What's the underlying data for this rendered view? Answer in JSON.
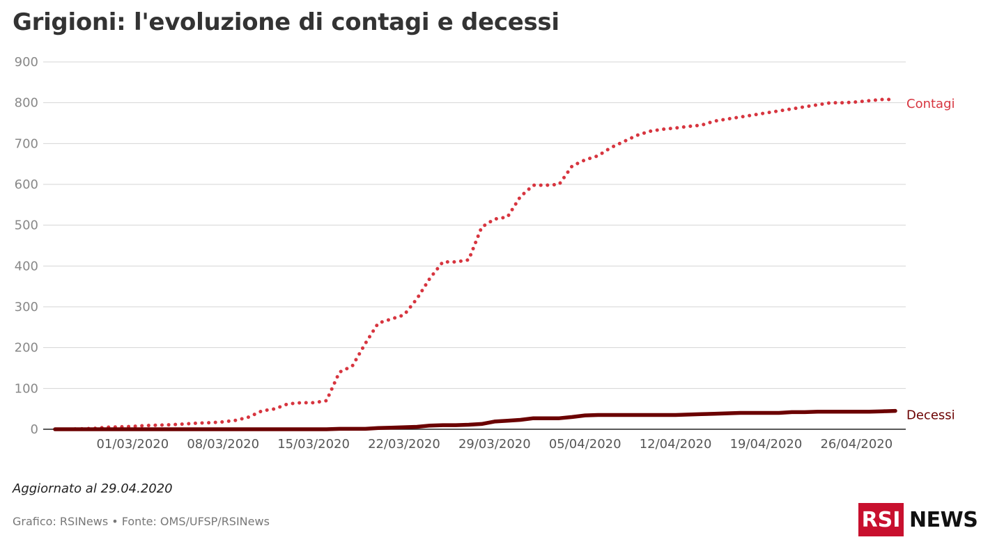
{
  "chart_data": {
    "type": "line",
    "title": "Grigioni: l'evoluzione di contagi e decessi",
    "ylim": [
      0,
      900
    ],
    "yticks": [
      0,
      100,
      200,
      300,
      400,
      500,
      600,
      700,
      800,
      900
    ],
    "x_start": "24/02/2020",
    "x": [
      "24/02/2020",
      "25/02/2020",
      "26/02/2020",
      "27/02/2020",
      "28/02/2020",
      "29/02/2020",
      "01/03/2020",
      "02/03/2020",
      "03/03/2020",
      "04/03/2020",
      "05/03/2020",
      "06/03/2020",
      "07/03/2020",
      "08/03/2020",
      "09/03/2020",
      "10/03/2020",
      "11/03/2020",
      "12/03/2020",
      "13/03/2020",
      "14/03/2020",
      "15/03/2020",
      "16/03/2020",
      "17/03/2020",
      "18/03/2020",
      "19/03/2020",
      "20/03/2020",
      "21/03/2020",
      "22/03/2020",
      "23/03/2020",
      "24/03/2020",
      "25/03/2020",
      "26/03/2020",
      "27/03/2020",
      "28/03/2020",
      "29/03/2020",
      "30/03/2020",
      "31/03/2020",
      "01/04/2020",
      "02/04/2020",
      "03/04/2020",
      "04/04/2020",
      "05/04/2020",
      "06/04/2020",
      "07/04/2020",
      "08/04/2020",
      "09/04/2020",
      "10/04/2020",
      "11/04/2020",
      "12/04/2020",
      "13/04/2020",
      "14/04/2020",
      "15/04/2020",
      "16/04/2020",
      "17/04/2020",
      "18/04/2020",
      "19/04/2020",
      "20/04/2020",
      "21/04/2020",
      "22/04/2020",
      "23/04/2020",
      "24/04/2020",
      "25/04/2020",
      "26/04/2020",
      "27/04/2020",
      "28/04/2020",
      "29/04/2020"
    ],
    "x_tick_labels": [
      "01/03/2020",
      "08/03/2020",
      "15/03/2020",
      "22/03/2020",
      "29/03/2020",
      "05/04/2020",
      "12/04/2020",
      "19/04/2020",
      "26/04/2020"
    ],
    "series": [
      {
        "name": "Contagi",
        "color": "#d7353f",
        "style": "dotted",
        "values": [
          0,
          0,
          1,
          2,
          5,
          6,
          7,
          9,
          10,
          11,
          13,
          15,
          16,
          18,
          22,
          30,
          45,
          50,
          62,
          65,
          65,
          70,
          140,
          155,
          210,
          260,
          270,
          280,
          320,
          370,
          410,
          410,
          415,
          495,
          515,
          520,
          570,
          598,
          598,
          600,
          645,
          660,
          670,
          690,
          705,
          720,
          730,
          735,
          738,
          742,
          745,
          755,
          760,
          765,
          770,
          775,
          780,
          785,
          790,
          795,
          800,
          800,
          802,
          805,
          808,
          808
        ]
      },
      {
        "name": "Decessi",
        "color": "#6b0000",
        "style": "solid",
        "values": [
          0,
          0,
          0,
          0,
          0,
          0,
          0,
          0,
          0,
          0,
          0,
          0,
          0,
          0,
          0,
          0,
          0,
          0,
          0,
          0,
          0,
          0,
          1,
          1,
          1,
          3,
          4,
          5,
          6,
          9,
          10,
          10,
          11,
          13,
          19,
          21,
          23,
          27,
          27,
          27,
          30,
          34,
          35,
          35,
          35,
          35,
          35,
          35,
          35,
          36,
          37,
          38,
          39,
          40,
          40,
          40,
          40,
          42,
          42,
          43,
          43,
          43,
          43,
          43,
          44,
          45
        ]
      }
    ]
  },
  "footer": {
    "updated": "Aggiornato al 29.04.2020",
    "source": "Grafico: RSINews • Fonte: OMS/UFSP/RSINews"
  },
  "logo": {
    "rsi": "RSI",
    "news": "NEWS"
  }
}
